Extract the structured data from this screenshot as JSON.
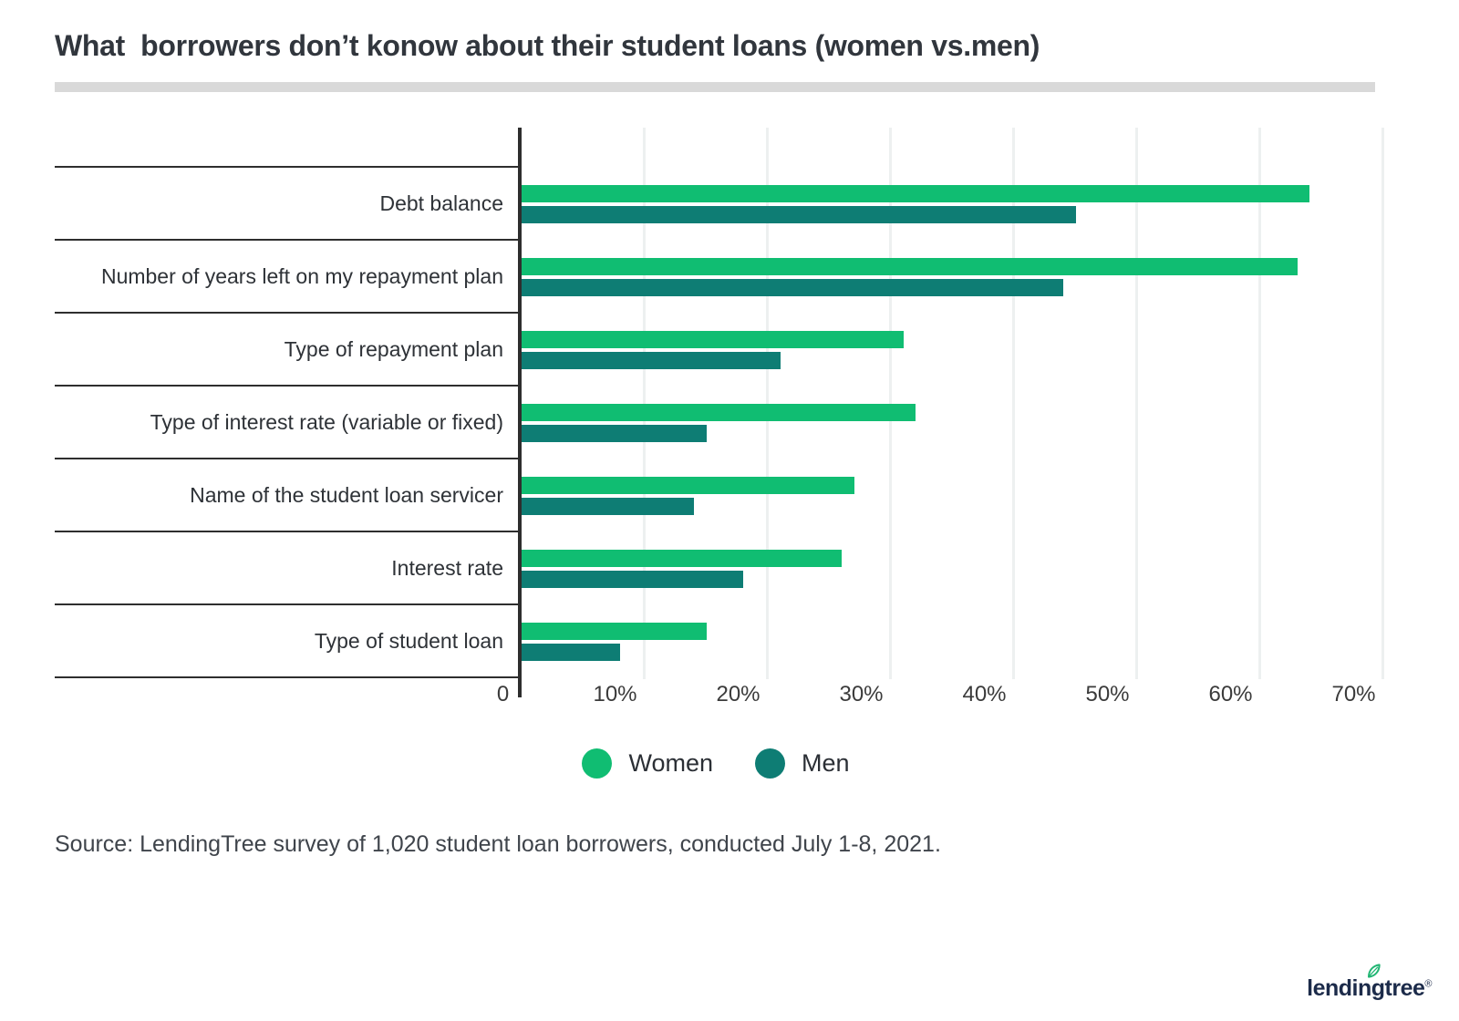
{
  "title": "What  borrowers don’t konow about their student loans (women vs.men)",
  "source": "Source: LendingTree survey of 1,020 student loan borrowers, conducted July 1-8, 2021.",
  "logo": {
    "text": "lendingtree",
    "registered": "®",
    "leaf_color": "#21b573",
    "text_color": "#1c2b4a"
  },
  "colors": {
    "women_green": "#10bd72",
    "men_teal": "#0e7d74",
    "gridline": "#edf0f0",
    "axis_dark": "#2e2e2e",
    "divider_gray": "#d9d9d9"
  },
  "chart_data": {
    "type": "bar",
    "orientation": "horizontal",
    "title": "What  borrowers don’t konow about their student loans (women vs.men)",
    "categories": [
      "Debt balance",
      "Number of years left on my repayment plan",
      "Type of repayment plan",
      "Type of interest rate (variable or fixed)",
      "Name of the student loan servicer",
      "Interest rate",
      "Type of student loan"
    ],
    "series": [
      {
        "name": "Women",
        "color": "#10bd72",
        "values": [
          64,
          63,
          31,
          32,
          27,
          26,
          15
        ]
      },
      {
        "name": "Men",
        "color": "#0e7d74",
        "values": [
          45,
          44,
          21,
          15,
          14,
          18,
          8
        ]
      }
    ],
    "x_axis": {
      "min": 0,
      "max": 70,
      "unit": "%",
      "ticks": [
        {
          "label": "0",
          "value": 0
        },
        {
          "label": "10%",
          "value": 10
        },
        {
          "label": "20%",
          "value": 20
        },
        {
          "label": "30%",
          "value": 30
        },
        {
          "label": "40%",
          "value": 40
        },
        {
          "label": "50%",
          "value": 50
        },
        {
          "label": "60%",
          "value": 60
        },
        {
          "label": "70%",
          "value": 70
        }
      ]
    },
    "grid": true,
    "legend_position": "bottom"
  }
}
